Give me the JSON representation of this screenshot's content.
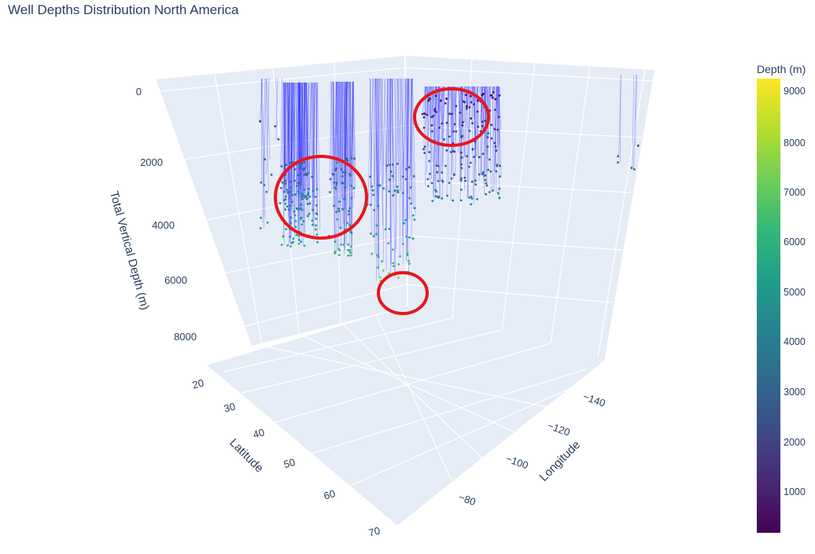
{
  "chart_data": {
    "type": "scatter3d",
    "title": "Well Depths Distribution North America",
    "axes": {
      "x": {
        "label": "Latitude",
        "ticks": [
          "20",
          "30",
          "40",
          "50",
          "60",
          "70"
        ],
        "range": [
          20,
          70
        ]
      },
      "y": {
        "label": "Longitude",
        "ticks": [
          "−140",
          "−120",
          "−100",
          "−80"
        ],
        "range": [
          -150,
          -70
        ]
      },
      "z": {
        "label": "Total Vertical Depth (m)",
        "ticks": [
          "0",
          "2000",
          "4000",
          "6000",
          "8000"
        ],
        "range": [
          0,
          9000
        ],
        "reversed": true
      }
    },
    "colorbar": {
      "title": "Depth (m)",
      "ticks": [
        "9000",
        "8000",
        "7000",
        "6000",
        "5000",
        "4000",
        "3000",
        "2000",
        "1000"
      ],
      "range": [
        0,
        9300
      ],
      "colorscale": "Viridis"
    },
    "clusters": [
      {
        "region": "left group",
        "depth_range": [
          2800,
          6500
        ]
      },
      {
        "region": "center deep group",
        "depth_range": [
          4000,
          7200
        ]
      },
      {
        "region": "right upper group",
        "depth_range": [
          200,
          4200
        ]
      }
    ],
    "annotations": [
      {
        "shape": "circle",
        "color": "#e8161b",
        "target": "left group"
      },
      {
        "shape": "circle",
        "color": "#e8161b",
        "target": "right upper group"
      },
      {
        "shape": "circle",
        "color": "#e8161b",
        "target": "center deep group"
      }
    ],
    "colors": {
      "well_line": "#1f1fff",
      "annotation": "#e8161b",
      "pane": "#e5ecf6",
      "grid": "#ffffff"
    }
  }
}
